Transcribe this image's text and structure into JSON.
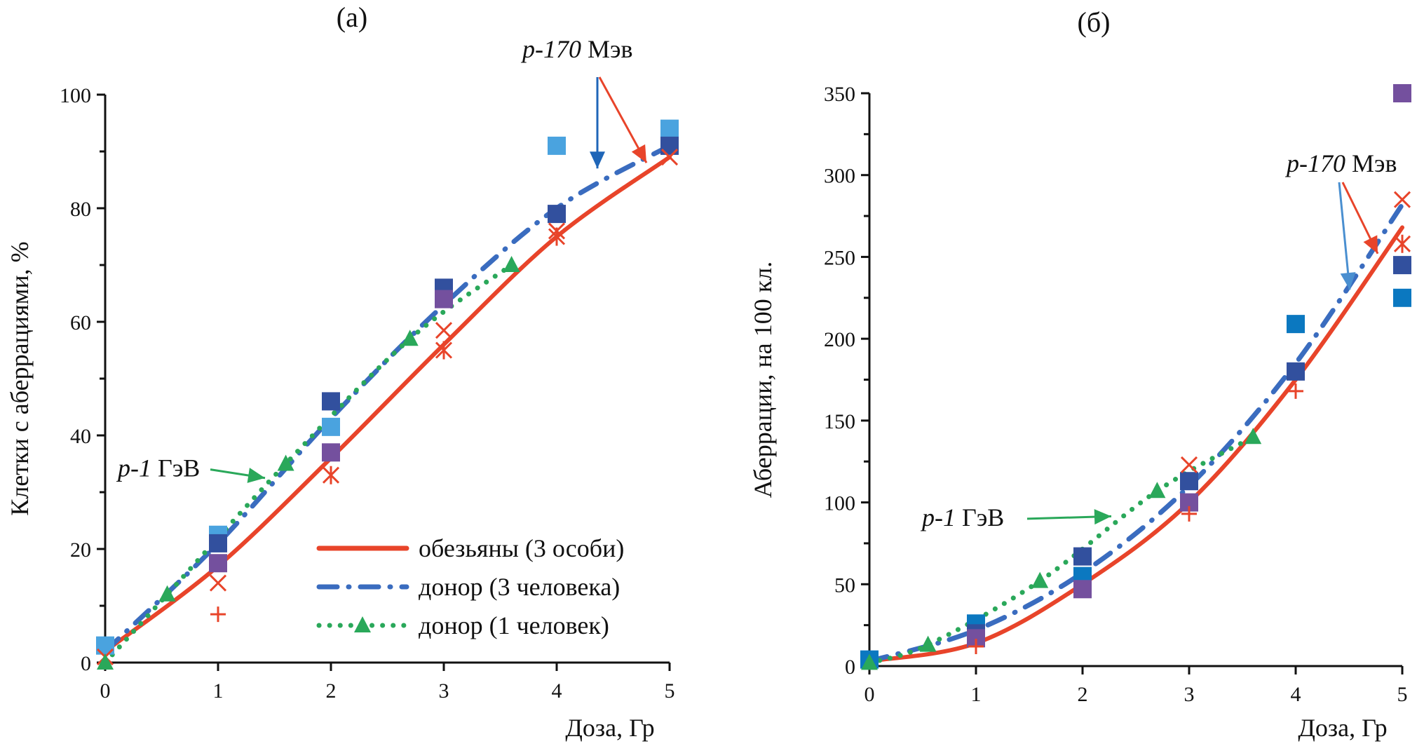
{
  "chart_data": [
    {
      "type": "scatter",
      "panel": "(a)",
      "title": "(a)",
      "xlabel": "Доза, Гр",
      "ylabel": "Клетки с аберрациями, %",
      "xlim": [
        0,
        5
      ],
      "ylim": [
        0,
        100
      ],
      "xticks": [
        "0",
        "1",
        "2",
        "3",
        "4",
        "5"
      ],
      "yticks": [
        "0",
        "20",
        "40",
        "60",
        "80",
        "100"
      ],
      "legend": {
        "placement": "bottom-right",
        "entries": [
          {
            "label": "обезьяны (3 особи)",
            "style": "solid",
            "color": "#e8442a"
          },
          {
            "label": "донор (3 человека)",
            "style": "dashdot",
            "color": "#3a6cbf"
          },
          {
            "label": "донор (1 человек)",
            "style": "dotted-triangle",
            "color": "#2aa85a"
          }
        ]
      },
      "annotations": [
        {
          "text_italic": "p-1",
          "text": " ГэВ",
          "target": "donor-1",
          "color": "#2aa85a"
        },
        {
          "text_italic": "p-170",
          "text": " Мэв",
          "target": "fits-at-high-dose",
          "colors": [
            "#1f66b8",
            "#e8442a"
          ]
        }
      ],
      "fits": [
        {
          "name": "обезьяны (3 особи)",
          "x": [
            0,
            1,
            2,
            3,
            4,
            5
          ],
          "y": [
            2,
            17,
            36,
            56,
            75,
            89
          ],
          "color": "#e8442a"
        },
        {
          "name": "донор (3 человека)",
          "x": [
            0,
            1,
            2,
            3,
            4,
            5
          ],
          "y": [
            2,
            21,
            43,
            63,
            80,
            91
          ],
          "color": "#3a6cbf"
        },
        {
          "name": "донор (1 человек)",
          "x": [
            0,
            0.55,
            1.6,
            2.7,
            3.6
          ],
          "y": [
            0,
            12,
            35,
            57,
            70
          ],
          "color": "#2aa85a"
        }
      ],
      "points": [
        {
          "marker": "square",
          "color": "#4aa3df",
          "x": [
            0,
            1,
            2,
            4,
            5
          ],
          "y": [
            3,
            22.5,
            41.5,
            91,
            94
          ]
        },
        {
          "marker": "square",
          "color": "#32509e",
          "x": [
            1,
            2,
            3,
            4,
            5
          ],
          "y": [
            21,
            46,
            66,
            79,
            91
          ]
        },
        {
          "marker": "square",
          "color": "#74509e",
          "x": [
            1,
            2,
            3
          ],
          "y": [
            17.5,
            37,
            64
          ]
        },
        {
          "marker": "x",
          "color": "#e8442a",
          "x": [
            0,
            1,
            3,
            4,
            5
          ],
          "y": [
            1,
            14,
            58.5,
            76,
            89
          ]
        },
        {
          "marker": "asterisk",
          "color": "#e8442a",
          "x": [
            2,
            3,
            4
          ],
          "y": [
            33,
            55,
            75
          ]
        },
        {
          "marker": "plus",
          "color": "#e8442a",
          "x": [
            1
          ],
          "y": [
            8.5
          ]
        },
        {
          "marker": "triangle",
          "color": "#2aa85a",
          "x": [
            0,
            0.55,
            1.6,
            2.7,
            3.6
          ],
          "y": [
            0,
            12,
            35,
            57,
            70
          ]
        }
      ]
    },
    {
      "type": "scatter",
      "panel": "(б)",
      "title": "(б)",
      "xlabel": "Доза, Гр",
      "ylabel": "Аберрации, на 100 кл.",
      "xlim": [
        0,
        5
      ],
      "ylim": [
        0,
        350
      ],
      "xticks": [
        "0",
        "1",
        "2",
        "3",
        "4",
        "5"
      ],
      "yticks": [
        "0",
        "50",
        "100",
        "150",
        "200",
        "250",
        "300",
        "350"
      ],
      "annotations": [
        {
          "text_italic": "p-1",
          "text": " ГэВ",
          "target": "donor-1",
          "color": "#2aa85a"
        },
        {
          "text_italic": "p-170",
          "text": " Мэв",
          "target": "fits-at-high-dose",
          "colors": [
            "#4a8fd0",
            "#e8442a"
          ]
        }
      ],
      "fits": [
        {
          "name": "обезьяны (3 особи)",
          "x": [
            0,
            1,
            2,
            3,
            4,
            5
          ],
          "y": [
            3,
            14,
            50,
            100,
            175,
            268
          ],
          "color": "#e8442a"
        },
        {
          "name": "донор (3 человека)",
          "x": [
            0,
            1,
            2,
            3,
            4,
            5
          ],
          "y": [
            3,
            22,
            57,
            110,
            185,
            282
          ],
          "color": "#3a6cbf"
        },
        {
          "name": "донор (1 человек)",
          "x": [
            0,
            0.55,
            1.6,
            2.7,
            3.6
          ],
          "y": [
            2,
            13,
            52,
            107,
            140
          ],
          "color": "#2aa85a"
        }
      ],
      "points": [
        {
          "marker": "square",
          "color": "#0b78c0",
          "x": [
            0,
            1,
            2,
            4,
            5
          ],
          "y": [
            4,
            26,
            55,
            209,
            225
          ]
        },
        {
          "marker": "square",
          "color": "#32509e",
          "x": [
            1,
            2,
            3,
            4,
            5
          ],
          "y": [
            20,
            67,
            113,
            180,
            245
          ]
        },
        {
          "marker": "square",
          "color": "#74509e",
          "x": [
            1,
            2,
            3,
            5
          ],
          "y": [
            17,
            47,
            100,
            350
          ]
        },
        {
          "marker": "x",
          "color": "#e8442a",
          "x": [
            3,
            5
          ],
          "y": [
            123,
            285
          ]
        },
        {
          "marker": "asterisk",
          "color": "#e8442a",
          "x": [
            5
          ],
          "y": [
            258
          ]
        },
        {
          "marker": "plus",
          "color": "#e8442a",
          "x": [
            1,
            3,
            4
          ],
          "y": [
            12,
            93,
            168
          ]
        },
        {
          "marker": "triangle",
          "color": "#2aa85a",
          "x": [
            0,
            0.55,
            1.6,
            2.7,
            3.6
          ],
          "y": [
            2,
            13,
            52,
            107,
            140
          ]
        }
      ]
    }
  ]
}
